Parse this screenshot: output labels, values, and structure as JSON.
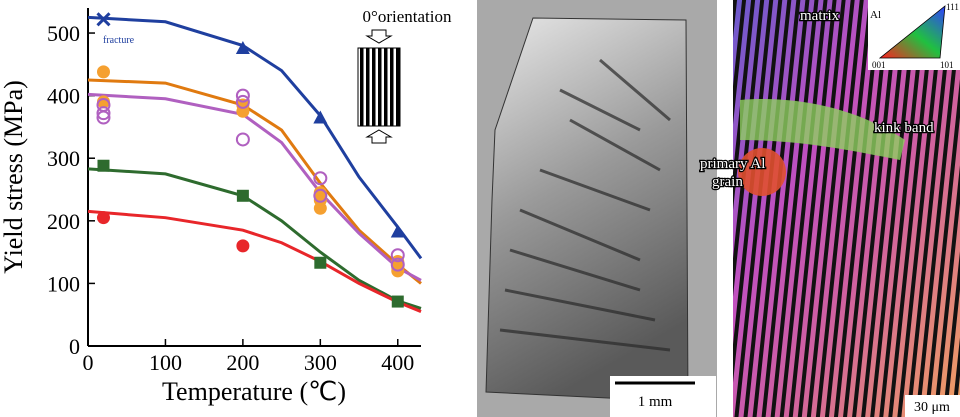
{
  "chart_data": {
    "type": "scatter",
    "xlabel": "Temperature (℃)",
    "ylabel": "Yield stress (MPa)",
    "xlim": [
      0,
      430
    ],
    "xticks": [
      0,
      100,
      200,
      300,
      400
    ],
    "ylim": [
      0,
      540
    ],
    "yticks": [
      0,
      100,
      200,
      300,
      400,
      500
    ],
    "annotations": [
      {
        "text": "fracture",
        "color": "#1f3f9f"
      },
      {
        "text": "0°orientation",
        "color": "#000000"
      }
    ],
    "series": [
      {
        "color": "#1f3f9f",
        "markers": [
          "x",
          "triangle",
          "triangle",
          "triangle"
        ],
        "x": [
          20,
          200,
          300,
          400
        ],
        "values": [
          522,
          476,
          365,
          183
        ]
      },
      {
        "color": "#f5a030",
        "markers": [
          "circle",
          "circle",
          "circle",
          "circle",
          "circle",
          "circle",
          "circle",
          "circle",
          "circle",
          "circle"
        ],
        "x": [
          20,
          20,
          200,
          200,
          300,
          300,
          300,
          400,
          400,
          400
        ],
        "values": [
          438,
          390,
          385,
          375,
          245,
          233,
          220,
          135,
          125,
          120
        ]
      },
      {
        "color": "#b060c0",
        "markers": [
          "open-circle",
          "open-circle",
          "open-circle",
          "open-circle",
          "open-circle",
          "open-circle",
          "open-circle",
          "open-circle",
          "open-circle",
          "open-circle"
        ],
        "x": [
          20,
          20,
          20,
          200,
          200,
          200,
          300,
          300,
          400,
          400
        ],
        "values": [
          385,
          372,
          365,
          400,
          390,
          330,
          268,
          240,
          145,
          130
        ]
      },
      {
        "color": "#2e6b2e",
        "markers": [
          "square",
          "square",
          "square",
          "square"
        ],
        "x": [
          20,
          200,
          300,
          400
        ],
        "values": [
          288,
          240,
          133,
          71
        ]
      },
      {
        "color": "#e8262a",
        "markers": [
          "circle",
          "circle"
        ],
        "x": [
          20,
          200
        ],
        "values": [
          205,
          160
        ]
      }
    ],
    "fits": [
      {
        "color": "#1f3f9f",
        "x": [
          0,
          100,
          200,
          250,
          300,
          350,
          400,
          430
        ],
        "values": [
          525,
          518,
          480,
          440,
          368,
          270,
          190,
          140
        ]
      },
      {
        "color": "#e07a10",
        "x": [
          0,
          100,
          200,
          250,
          300,
          350,
          400,
          430
        ],
        "values": [
          425,
          420,
          385,
          345,
          260,
          185,
          130,
          100
        ]
      },
      {
        "color": "#b060c0",
        "x": [
          0,
          100,
          200,
          250,
          300,
          350,
          400,
          430
        ],
        "values": [
          402,
          395,
          370,
          325,
          245,
          180,
          125,
          105
        ]
      },
      {
        "color": "#2e6b2e",
        "x": [
          0,
          100,
          200,
          250,
          300,
          350,
          400,
          430
        ],
        "values": [
          283,
          275,
          240,
          200,
          150,
          105,
          72,
          60
        ]
      },
      {
        "color": "#e8262a",
        "x": [
          0,
          100,
          200,
          250,
          300,
          350,
          400,
          430
        ],
        "values": [
          215,
          205,
          185,
          165,
          135,
          100,
          70,
          55
        ]
      }
    ]
  },
  "micrographs": {
    "specimen": {
      "scale_bar": "1 mm"
    },
    "ebsd": {
      "labels": [
        "matrix",
        "kink band",
        "primary Al",
        "grain"
      ],
      "key": {
        "phase": "Al",
        "corners": [
          "001",
          "101",
          "111"
        ]
      },
      "scale_bar": "30 μm"
    }
  }
}
